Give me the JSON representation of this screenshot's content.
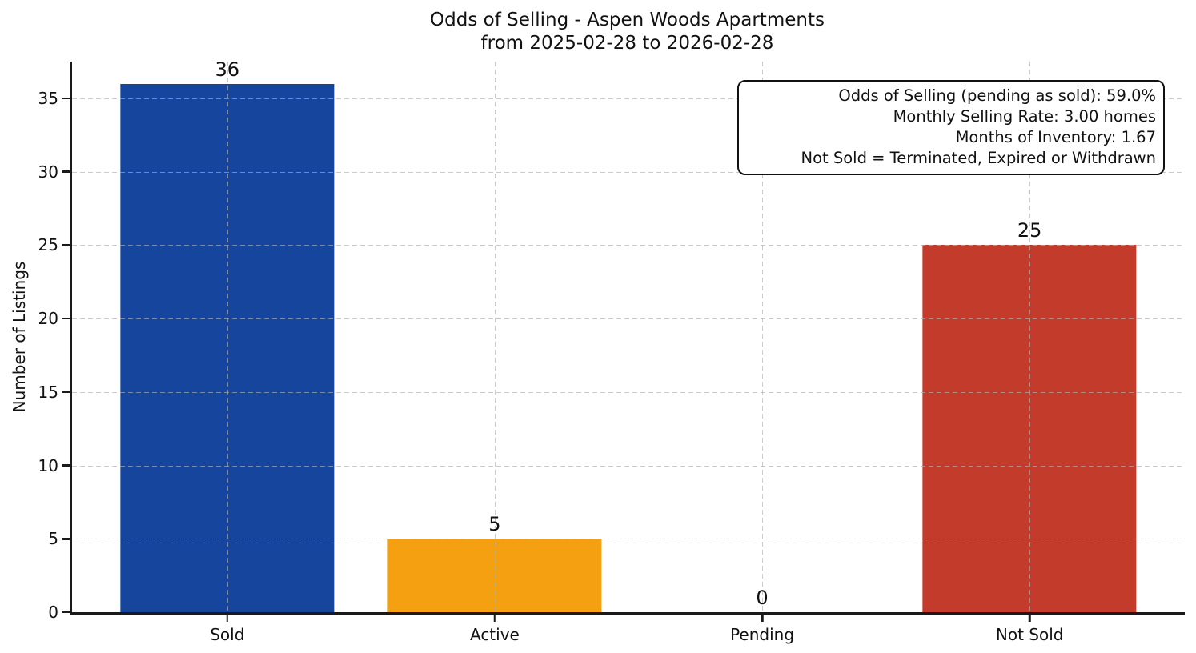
{
  "chart_data": {
    "type": "bar",
    "title": "Odds of Selling - Aspen Woods Apartments",
    "subtitle": "from 2025-02-28 to 2026-02-28",
    "categories": [
      "Sold",
      "Active",
      "Pending",
      "Not Sold"
    ],
    "values": [
      36,
      5,
      0,
      25
    ],
    "value_labels": [
      "36",
      "5",
      "0",
      "25"
    ],
    "bar_colors": [
      "#15459c",
      "#f4a011",
      "#999999",
      "#c33b2b"
    ],
    "xlabel": "",
    "ylabel": "Number of Listings",
    "yticks": [
      0,
      5,
      10,
      15,
      20,
      25,
      30,
      35
    ],
    "ylim": [
      0,
      37.5
    ],
    "grid": "dashed light-gray, horizontal at yticks and vertical at category centers, drawn above bars",
    "legend_position": "none",
    "annotation_box": {
      "position": "top-right",
      "lines": [
        "Odds of Selling (pending as sold): 59.0%",
        "Monthly Selling Rate: 3.00 homes",
        "Months of Inventory: 1.67",
        "Not Sold = Terminated, Expired or Withdrawn"
      ]
    },
    "colors": {
      "sold": "#15459c",
      "active": "#f4a011",
      "pending": "#999999",
      "not_sold": "#c33b2b",
      "axis": "#1a1a1a",
      "text": "#111111",
      "grid": "#afafaf"
    }
  }
}
